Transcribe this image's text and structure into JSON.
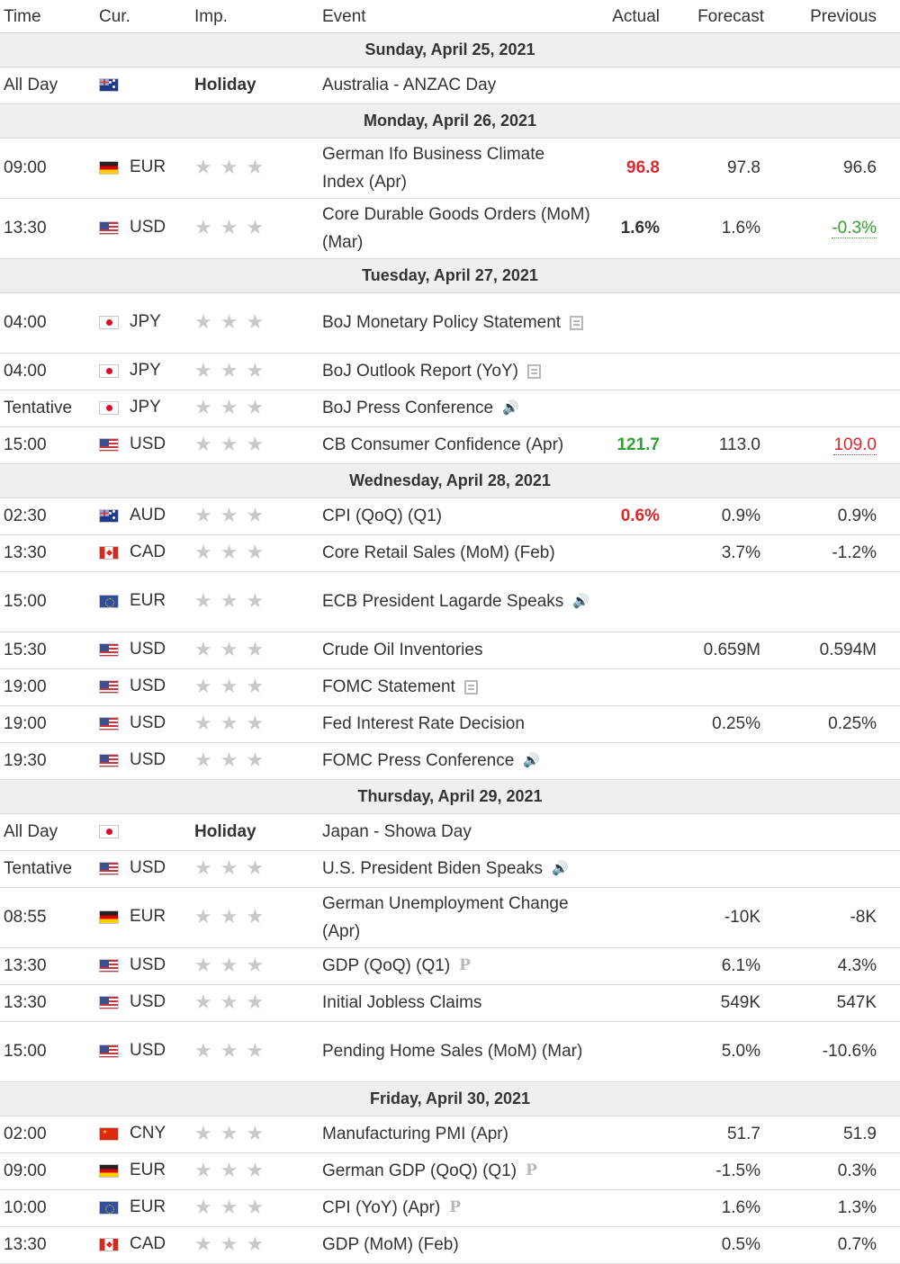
{
  "headers": {
    "time": "Time",
    "cur": "Cur.",
    "imp": "Imp.",
    "event": "Event",
    "actual": "Actual",
    "forecast": "Forecast",
    "previous": "Previous"
  },
  "colors": {
    "actual_red": "#e0262c",
    "actual_green": "#2ea12e",
    "star_gray": "#c9c9c9",
    "date_bar": "#efefef"
  },
  "rows": [
    {
      "type": "date",
      "label": "Sunday, April 25, 2021"
    },
    {
      "type": "event",
      "time": "All Day",
      "flag": "australia-flag-icon",
      "flag_class": "au",
      "currency": "",
      "importance": "Holiday",
      "event": "Australia - ANZAC Day",
      "icon": "",
      "actual": "",
      "actual_color": "",
      "forecast": "",
      "previous": "",
      "previous_style": "",
      "lines": 1
    },
    {
      "type": "date",
      "label": "Monday, April 26, 2021"
    },
    {
      "type": "event",
      "time": "09:00",
      "flag": "germany-flag-icon",
      "flag_class": "de",
      "currency": "EUR",
      "importance": "stars",
      "event": "German Ifo Business Climate Index (Apr)",
      "icon": "",
      "actual": "96.8",
      "actual_color": "red",
      "forecast": "97.8",
      "previous": "96.6",
      "previous_style": "",
      "lines": 2
    },
    {
      "type": "event",
      "time": "13:30",
      "flag": "usa-flag-icon",
      "flag_class": "us",
      "currency": "USD",
      "importance": "stars",
      "event": "Core Durable Goods Orders (MoM) (Mar)",
      "icon": "",
      "actual": "1.6%",
      "actual_color": "black",
      "forecast": "1.6%",
      "previous": "-0.3%",
      "previous_style": "prev-green",
      "lines": 2
    },
    {
      "type": "date",
      "label": "Tuesday, April 27, 2021"
    },
    {
      "type": "event",
      "time": "04:00",
      "flag": "japan-flag-icon",
      "flag_class": "jp",
      "currency": "JPY",
      "importance": "stars",
      "event": "BoJ Monetary Policy Statement",
      "icon": "doc",
      "actual": "",
      "actual_color": "",
      "forecast": "",
      "previous": "",
      "previous_style": "",
      "lines": 2
    },
    {
      "type": "event",
      "time": "04:00",
      "flag": "japan-flag-icon",
      "flag_class": "jp",
      "currency": "JPY",
      "importance": "stars",
      "event": "BoJ Outlook Report (YoY)",
      "icon": "doc",
      "actual": "",
      "actual_color": "",
      "forecast": "",
      "previous": "",
      "previous_style": "",
      "lines": 1
    },
    {
      "type": "event",
      "time": "Tentative",
      "flag": "japan-flag-icon",
      "flag_class": "jp",
      "currency": "JPY",
      "importance": "stars",
      "event": "BoJ Press Conference",
      "icon": "speaker",
      "actual": "",
      "actual_color": "",
      "forecast": "",
      "previous": "",
      "previous_style": "",
      "lines": 1
    },
    {
      "type": "event",
      "time": "15:00",
      "flag": "usa-flag-icon",
      "flag_class": "us",
      "currency": "USD",
      "importance": "stars",
      "event": "CB Consumer Confidence (Apr)",
      "icon": "",
      "actual": "121.7",
      "actual_color": "green",
      "forecast": "113.0",
      "previous": "109.0",
      "previous_style": "prev-red",
      "lines": 1
    },
    {
      "type": "date",
      "label": "Wednesday, April 28, 2021"
    },
    {
      "type": "event",
      "time": "02:30",
      "flag": "australia-flag-icon",
      "flag_class": "au",
      "currency": "AUD",
      "importance": "stars",
      "event": "CPI (QoQ) (Q1)",
      "icon": "",
      "actual": "0.6%",
      "actual_color": "red",
      "forecast": "0.9%",
      "previous": "0.9%",
      "previous_style": "",
      "lines": 1
    },
    {
      "type": "event",
      "time": "13:30",
      "flag": "canada-flag-icon",
      "flag_class": "ca",
      "currency": "CAD",
      "importance": "stars",
      "event": "Core Retail Sales (MoM) (Feb)",
      "icon": "",
      "actual": "",
      "actual_color": "",
      "forecast": "3.7%",
      "previous": "-1.2%",
      "previous_style": "",
      "lines": 1
    },
    {
      "type": "event",
      "time": "15:00",
      "flag": "eu-flag-icon",
      "flag_class": "eu",
      "currency": "EUR",
      "importance": "stars",
      "event": "ECB President Lagarde Speaks",
      "icon": "speaker",
      "actual": "",
      "actual_color": "",
      "forecast": "",
      "previous": "",
      "previous_style": "",
      "lines": 2
    },
    {
      "type": "event",
      "time": "15:30",
      "flag": "usa-flag-icon",
      "flag_class": "us",
      "currency": "USD",
      "importance": "stars",
      "event": "Crude Oil Inventories",
      "icon": "",
      "actual": "",
      "actual_color": "",
      "forecast": "0.659M",
      "previous": "0.594M",
      "previous_style": "",
      "lines": 1
    },
    {
      "type": "event",
      "time": "19:00",
      "flag": "usa-flag-icon",
      "flag_class": "us",
      "currency": "USD",
      "importance": "stars",
      "event": "FOMC Statement",
      "icon": "doc",
      "actual": "",
      "actual_color": "",
      "forecast": "",
      "previous": "",
      "previous_style": "",
      "lines": 1
    },
    {
      "type": "event",
      "time": "19:00",
      "flag": "usa-flag-icon",
      "flag_class": "us",
      "currency": "USD",
      "importance": "stars",
      "event": "Fed Interest Rate Decision",
      "icon": "",
      "actual": "",
      "actual_color": "",
      "forecast": "0.25%",
      "previous": "0.25%",
      "previous_style": "",
      "lines": 1
    },
    {
      "type": "event",
      "time": "19:30",
      "flag": "usa-flag-icon",
      "flag_class": "us",
      "currency": "USD",
      "importance": "stars",
      "event": "FOMC Press Conference",
      "icon": "speaker",
      "actual": "",
      "actual_color": "",
      "forecast": "",
      "previous": "",
      "previous_style": "",
      "lines": 1
    },
    {
      "type": "date",
      "label": "Thursday, April 29, 2021"
    },
    {
      "type": "event",
      "time": "All Day",
      "flag": "japan-flag-icon",
      "flag_class": "jp",
      "currency": "",
      "importance": "Holiday",
      "event": "Japan - Showa Day",
      "icon": "",
      "actual": "",
      "actual_color": "",
      "forecast": "",
      "previous": "",
      "previous_style": "",
      "lines": 1
    },
    {
      "type": "event",
      "time": "Tentative",
      "flag": "usa-flag-icon",
      "flag_class": "us",
      "currency": "USD",
      "importance": "stars",
      "event": "U.S. President Biden Speaks",
      "icon": "speaker",
      "actual": "",
      "actual_color": "",
      "forecast": "",
      "previous": "",
      "previous_style": "",
      "lines": 1
    },
    {
      "type": "event",
      "time": "08:55",
      "flag": "germany-flag-icon",
      "flag_class": "de",
      "currency": "EUR",
      "importance": "stars",
      "event": "German Unemployment Change (Apr)",
      "icon": "",
      "actual": "",
      "actual_color": "",
      "forecast": "-10K",
      "previous": "-8K",
      "previous_style": "",
      "lines": 2
    },
    {
      "type": "event",
      "time": "13:30",
      "flag": "usa-flag-icon",
      "flag_class": "us",
      "currency": "USD",
      "importance": "stars",
      "event": "GDP (QoQ) (Q1)",
      "icon": "prelim",
      "actual": "",
      "actual_color": "",
      "forecast": "6.1%",
      "previous": "4.3%",
      "previous_style": "",
      "lines": 1
    },
    {
      "type": "event",
      "time": "13:30",
      "flag": "usa-flag-icon",
      "flag_class": "us",
      "currency": "USD",
      "importance": "stars",
      "event": "Initial Jobless Claims",
      "icon": "",
      "actual": "",
      "actual_color": "",
      "forecast": "549K",
      "previous": "547K",
      "previous_style": "",
      "lines": 1
    },
    {
      "type": "event",
      "time": "15:00",
      "flag": "usa-flag-icon",
      "flag_class": "us",
      "currency": "USD",
      "importance": "stars",
      "event": "Pending Home Sales (MoM) (Mar)",
      "icon": "",
      "actual": "",
      "actual_color": "",
      "forecast": "5.0%",
      "previous": "-10.6%",
      "previous_style": "",
      "lines": 2
    },
    {
      "type": "date",
      "label": "Friday, April 30, 2021"
    },
    {
      "type": "event",
      "time": "02:00",
      "flag": "china-flag-icon",
      "flag_class": "cn",
      "currency": "CNY",
      "importance": "stars",
      "event": "Manufacturing PMI (Apr)",
      "icon": "",
      "actual": "",
      "actual_color": "",
      "forecast": "51.7",
      "previous": "51.9",
      "previous_style": "",
      "lines": 1
    },
    {
      "type": "event",
      "time": "09:00",
      "flag": "germany-flag-icon",
      "flag_class": "de",
      "currency": "EUR",
      "importance": "stars",
      "event": "German GDP (QoQ) (Q1)",
      "icon": "prelim",
      "actual": "",
      "actual_color": "",
      "forecast": "-1.5%",
      "previous": "0.3%",
      "previous_style": "",
      "lines": 1
    },
    {
      "type": "event",
      "time": "10:00",
      "flag": "eu-flag-icon",
      "flag_class": "eu",
      "currency": "EUR",
      "importance": "stars",
      "event": "CPI (YoY) (Apr)",
      "icon": "prelim",
      "actual": "",
      "actual_color": "",
      "forecast": "1.6%",
      "previous": "1.3%",
      "previous_style": "",
      "lines": 1
    },
    {
      "type": "event",
      "time": "13:30",
      "flag": "canada-flag-icon",
      "flag_class": "ca",
      "currency": "CAD",
      "importance": "stars",
      "event": "GDP (MoM) (Feb)",
      "icon": "",
      "actual": "",
      "actual_color": "",
      "forecast": "0.5%",
      "previous": "0.7%",
      "previous_style": "",
      "lines": 1
    }
  ],
  "glyphs": {
    "star": "★",
    "speaker": "🔊",
    "prelim": "P"
  }
}
